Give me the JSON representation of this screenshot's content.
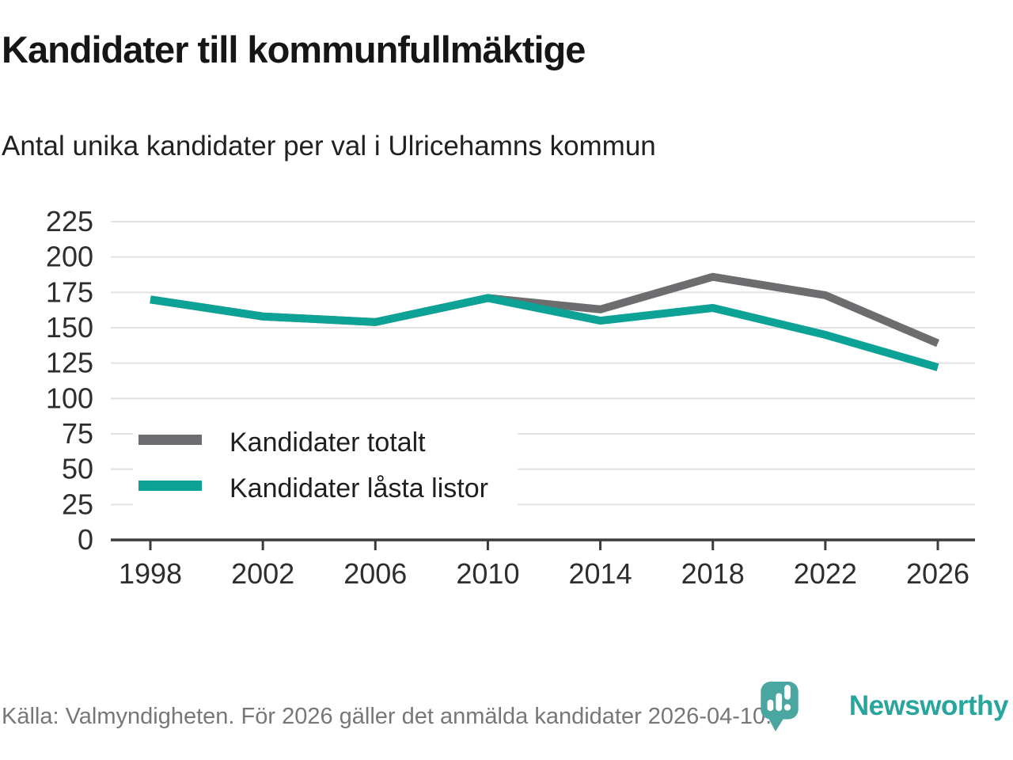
{
  "header": {
    "title": "Kandidater till kommunfullmäktige",
    "subtitle": "Antal unika kandidater per val i Ulricehamns kommun"
  },
  "chart_data": {
    "type": "line",
    "x": [
      1998,
      2002,
      2006,
      2010,
      2014,
      2018,
      2022,
      2026
    ],
    "series": [
      {
        "name": "Kandidater totalt",
        "color": "#6d6d70",
        "values": [
          170,
          158,
          154,
          171,
          163,
          186,
          173,
          139
        ]
      },
      {
        "name": "Kandidater låsta listor",
        "color": "#0da296",
        "values": [
          170,
          158,
          154,
          171,
          155,
          164,
          145,
          122
        ]
      }
    ],
    "ylim": [
      0,
      225
    ],
    "ytick_step": 25,
    "grid": "horizontal",
    "gridline_color": "#e2e2e2",
    "axis_color": "#3c3c3c",
    "legend_position": "inside-bottom-left"
  },
  "footer": {
    "source": "Källa: Valmyndigheten. För 2026 gäller det anmälda kandidater 2026-04-10."
  },
  "logo": {
    "text": "Newsworthy",
    "text_color": "#28a59c",
    "icon_color": "#4aa6a0",
    "icon": "newsworthy-pin-barchart-icon"
  }
}
